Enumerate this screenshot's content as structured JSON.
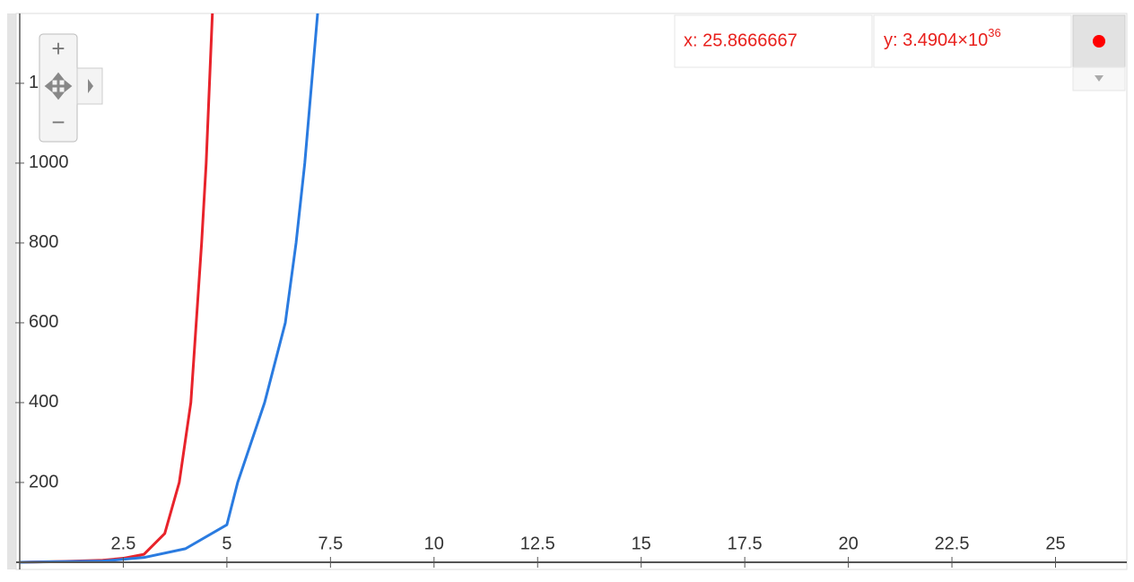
{
  "chart_data": {
    "type": "line",
    "series": [
      {
        "color": "#e8232b",
        "x": [
          0,
          1,
          2,
          2.5,
          3,
          3.5,
          3.85,
          4.13,
          4.39,
          4.5,
          4.65
        ],
        "values": [
          0,
          2,
          5,
          10,
          20,
          72,
          200,
          400,
          800,
          1000,
          1375
        ]
      },
      {
        "color": "#2a7be0",
        "x": [
          0,
          2,
          3,
          4,
          5,
          5.26,
          5.91,
          6.41,
          6.67,
          6.88,
          7.19
        ],
        "values": [
          0,
          3,
          12,
          34,
          94,
          200,
          400,
          600,
          800,
          1000,
          1375
        ]
      }
    ],
    "xlim": [
      0,
      26.7
    ],
    "ylim": [
      0,
      1375
    ],
    "xticks": [
      2.5,
      5,
      7.5,
      10,
      12.5,
      15,
      17.5,
      20,
      22.5,
      25
    ],
    "yticks": [
      200,
      400,
      600,
      800,
      1000,
      1200
    ],
    "readout": {
      "x": "x: 25.8666667",
      "y": "y: 3.4904×10",
      "y_exponent": "36"
    },
    "zoom": {
      "plus": "+",
      "minus": "−"
    }
  }
}
